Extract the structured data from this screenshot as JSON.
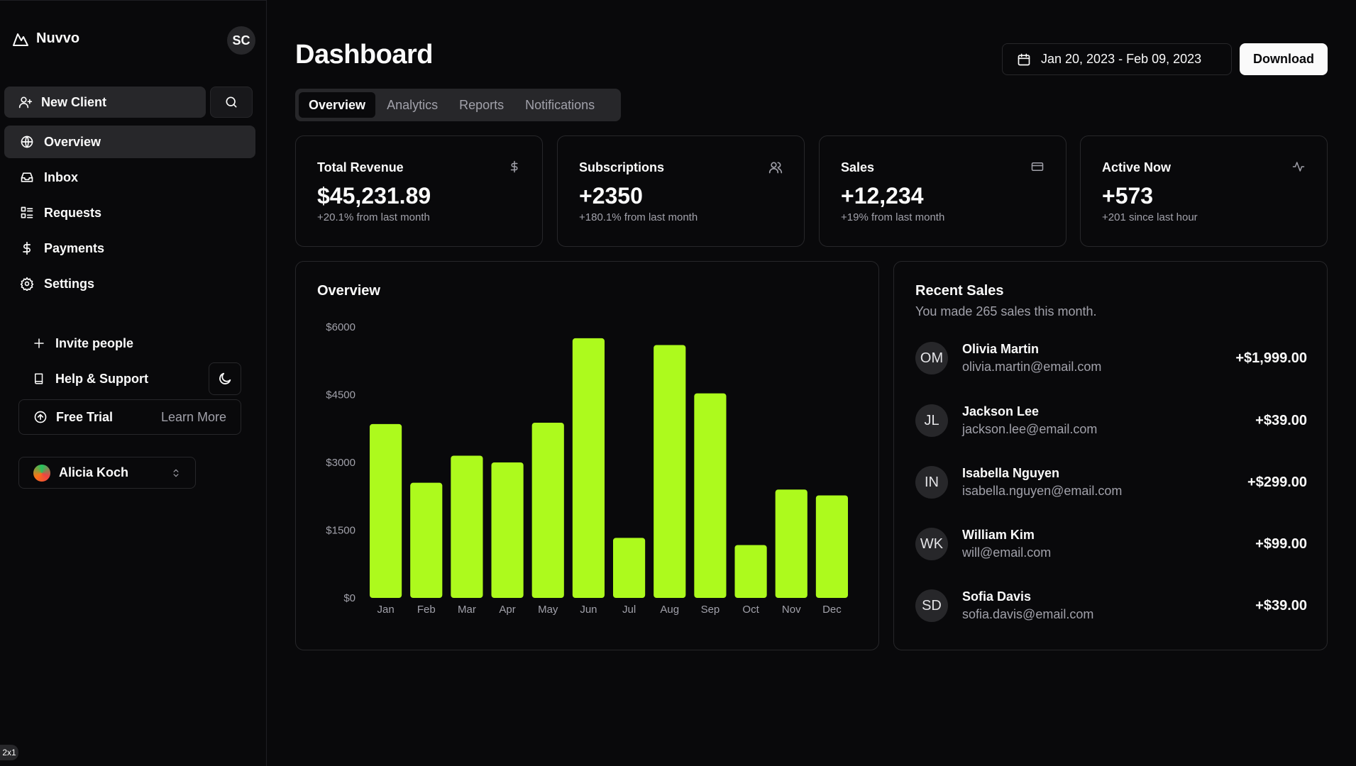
{
  "sidebar": {
    "brand": "Nuvvo",
    "avatar_initials": "SC",
    "new_client_label": "New Client",
    "nav": [
      {
        "label": "Overview",
        "icon": "globe-icon",
        "active": true
      },
      {
        "label": "Inbox",
        "icon": "inbox-icon",
        "active": false
      },
      {
        "label": "Requests",
        "icon": "list-icon",
        "active": false
      },
      {
        "label": "Payments",
        "icon": "dollar-icon",
        "active": false
      },
      {
        "label": "Settings",
        "icon": "gear-icon",
        "active": false
      }
    ],
    "invite_label": "Invite people",
    "help_label": "Help & Support",
    "free_trial_label": "Free Trial",
    "learn_more_label": "Learn More",
    "user_name": "Alicia Koch",
    "corner_badge": "2x1"
  },
  "header": {
    "title": "Dashboard",
    "date_range": "Jan 20, 2023 - Feb 09, 2023",
    "download_label": "Download"
  },
  "tabs": [
    {
      "label": "Overview",
      "active": true
    },
    {
      "label": "Analytics",
      "active": false
    },
    {
      "label": "Reports",
      "active": false
    },
    {
      "label": "Notifications",
      "active": false
    }
  ],
  "stats": [
    {
      "title": "Total Revenue",
      "value": "$45,231.89",
      "sub": "+20.1% from last month",
      "icon": "dollar-icon"
    },
    {
      "title": "Subscriptions",
      "value": "+2350",
      "sub": "+180.1% from last month",
      "icon": "users-icon"
    },
    {
      "title": "Sales",
      "value": "+12,234",
      "sub": "+19% from last month",
      "icon": "credit-card-icon"
    },
    {
      "title": "Active Now",
      "value": "+573",
      "sub": "+201 since last hour",
      "icon": "activity-icon"
    }
  ],
  "overview": {
    "title": "Overview"
  },
  "chart_data": {
    "type": "bar",
    "title": "Overview",
    "xlabel": "",
    "ylabel": "",
    "categories": [
      "Jan",
      "Feb",
      "Mar",
      "Apr",
      "May",
      "Jun",
      "Jul",
      "Aug",
      "Sep",
      "Oct",
      "Nov",
      "Dec"
    ],
    "values": [
      3850,
      2550,
      3150,
      3000,
      3880,
      5750,
      1330,
      5600,
      4530,
      1170,
      2400,
      2270
    ],
    "yticks": [
      "$0",
      "$1500",
      "$3000",
      "$4500",
      "$6000"
    ],
    "ylim": [
      0,
      6000
    ],
    "grid": false,
    "color": "#adfa1d"
  },
  "recent_sales": {
    "title": "Recent Sales",
    "subtitle": "You made 265 sales this month.",
    "items": [
      {
        "initials": "OM",
        "name": "Olivia Martin",
        "email": "olivia.martin@email.com",
        "amount": "+$1,999.00"
      },
      {
        "initials": "JL",
        "name": "Jackson Lee",
        "email": "jackson.lee@email.com",
        "amount": "+$39.00"
      },
      {
        "initials": "IN",
        "name": "Isabella Nguyen",
        "email": "isabella.nguyen@email.com",
        "amount": "+$299.00"
      },
      {
        "initials": "WK",
        "name": "William Kim",
        "email": "will@email.com",
        "amount": "+$99.00"
      },
      {
        "initials": "SD",
        "name": "Sofia Davis",
        "email": "sofia.davis@email.com",
        "amount": "+$39.00"
      }
    ]
  }
}
